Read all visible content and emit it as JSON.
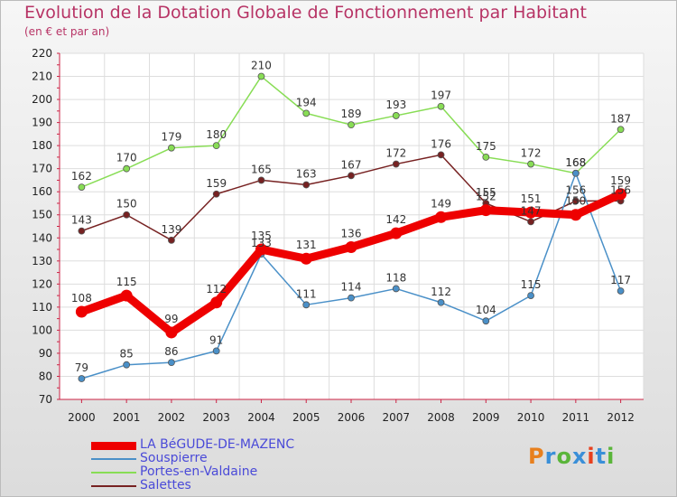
{
  "title": "Evolution de la Dotation Globale de Fonctionnement par Habitant",
  "subtitle": "(en € et par an)",
  "logo": {
    "text": "Proxiti",
    "colors": [
      "#e8801e",
      "#3a8fd8",
      "#5ab53a",
      "#3a8fd8",
      "#e8401e",
      "#3a8fd8",
      "#5ab53a"
    ]
  },
  "chart_data": {
    "type": "line",
    "title": "Evolution de la Dotation Globale de Fonctionnement par Habitant",
    "subtitle": "(en € et par an)",
    "x": [
      "2000",
      "2001",
      "2002",
      "2003",
      "2004",
      "2005",
      "2006",
      "2007",
      "2008",
      "2009",
      "2010",
      "2011",
      "2012"
    ],
    "ylim": [
      70,
      220
    ],
    "yticks": [
      70,
      80,
      90,
      100,
      110,
      120,
      130,
      140,
      150,
      160,
      170,
      180,
      190,
      200,
      210,
      220
    ],
    "grid": true,
    "legend_position": "bottom-left",
    "series": [
      {
        "name": "LA BéGUDE-DE-MAZENC",
        "color": "#ee0000",
        "values": [
          108,
          115,
          99,
          112,
          135,
          131,
          136,
          142,
          149,
          152,
          151,
          150,
          159
        ]
      },
      {
        "name": "Souspierre",
        "color": "#4a90c8",
        "values": [
          79,
          85,
          86,
          91,
          133,
          111,
          114,
          118,
          112,
          104,
          115,
          168,
          117
        ]
      },
      {
        "name": "Portes-en-Valdaine",
        "color": "#88dd55",
        "values": [
          162,
          170,
          179,
          180,
          210,
          194,
          189,
          193,
          197,
          175,
          172,
          168,
          187
        ]
      },
      {
        "name": "Salettes",
        "color": "#772222",
        "values": [
          143,
          150,
          139,
          159,
          165,
          163,
          167,
          172,
          176,
          155,
          147,
          156,
          156
        ]
      }
    ]
  }
}
